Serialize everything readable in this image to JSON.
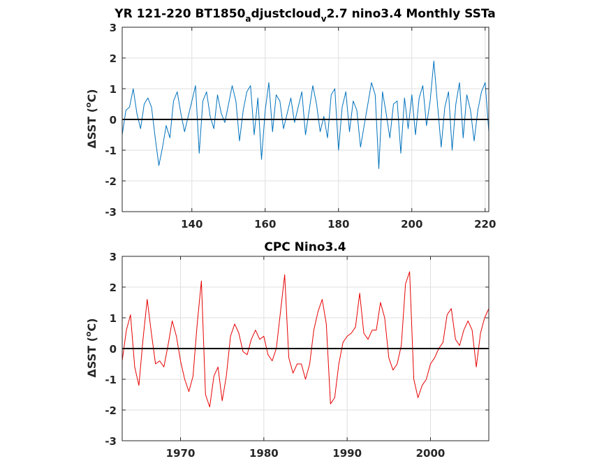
{
  "chart_data": [
    {
      "type": "line",
      "title": "YR 121-220 BT1850",
      "title_sub1": "a",
      "title_mid": "djustcloud",
      "title_sub2": "v",
      "title_end": "2.7 nino3.4 Monthly SSTa",
      "ylabel_delta": "Δ",
      "ylabel_pre": "SST (",
      "ylabel_deg": "o",
      "ylabel_post": "C)",
      "xlim": [
        121,
        221
      ],
      "ylim": [
        -3,
        3
      ],
      "xticks": [
        140,
        160,
        180,
        200,
        220
      ],
      "yticks": [
        -3,
        -2,
        -1,
        0,
        1,
        2,
        3
      ],
      "grid": true,
      "line_color": "#0072BD",
      "zero_line_color": "#000000",
      "series": [
        {
          "x": [
            121.0,
            122.0,
            123.0,
            124.0,
            125.0,
            126.0,
            127.0,
            128.0,
            129.0,
            130.0,
            131.0,
            132.0,
            133.0,
            134.0,
            135.0,
            136.0,
            137.0,
            138.0,
            139.0,
            140.0,
            141.0,
            142.0,
            143.0,
            144.0,
            145.0,
            146.0,
            147.0,
            148.0,
            149.0,
            150.0,
            151.0,
            152.0,
            153.0,
            154.0,
            155.0,
            156.0,
            157.0,
            158.0,
            159.0,
            160.0,
            161.0,
            162.0,
            163.0,
            164.0,
            165.0,
            166.0,
            167.0,
            168.0,
            169.0,
            170.0,
            171.0,
            172.0,
            173.0,
            174.0,
            175.0,
            176.0,
            177.0,
            178.0,
            179.0,
            180.0,
            181.0,
            182.0,
            183.0,
            184.0,
            185.0,
            186.0,
            187.0,
            188.0,
            189.0,
            190.0,
            191.0,
            192.0,
            193.0,
            194.0,
            195.0,
            196.0,
            197.0,
            198.0,
            199.0,
            200.0,
            201.0,
            202.0,
            203.0,
            204.0,
            205.0,
            206.0,
            207.0,
            208.0,
            209.0,
            210.0,
            211.0,
            212.0,
            213.0,
            214.0,
            215.0,
            216.0,
            217.0,
            218.0,
            219.0,
            220.0,
            221.0
          ],
          "y": [
            -0.5,
            0.3,
            0.4,
            1.0,
            0.2,
            -0.3,
            0.5,
            0.7,
            0.4,
            -0.6,
            -1.5,
            -0.9,
            -0.2,
            -0.6,
            0.6,
            0.9,
            0.2,
            -0.4,
            0.1,
            0.6,
            1.1,
            -1.1,
            0.6,
            0.9,
            0.1,
            -0.3,
            0.8,
            0.2,
            -0.1,
            0.5,
            1.1,
            0.6,
            -0.7,
            0.3,
            0.9,
            1.1,
            -0.5,
            0.7,
            -1.3,
            0.3,
            1.2,
            -0.4,
            0.8,
            0.6,
            -0.3,
            0.2,
            0.7,
            -0.1,
            0.4,
            0.9,
            -0.5,
            0.3,
            1.1,
            0.5,
            -0.4,
            0.1,
            -0.6,
            0.8,
            1.0,
            -1.0,
            0.4,
            0.9,
            -0.4,
            0.6,
            0.3,
            -0.9,
            -0.2,
            0.5,
            1.2,
            0.8,
            -1.6,
            0.9,
            0.2,
            -0.6,
            0.5,
            0.6,
            -1.1,
            0.7,
            -0.3,
            0.8,
            -0.5,
            0.7,
            1.1,
            -0.2,
            0.6,
            1.9,
            0.5,
            -0.9,
            0.4,
            0.9,
            -1.0,
            0.5,
            1.2,
            -0.6,
            0.8,
            0.3,
            -0.7,
            0.3,
            0.9,
            1.2,
            -0.4
          ]
        }
      ]
    },
    {
      "type": "line",
      "title": "CPC Nino3.4",
      "ylabel_delta": "Δ",
      "ylabel_pre": "SST (",
      "ylabel_deg": "o",
      "ylabel_post": "C)",
      "xlim": [
        1963,
        2007
      ],
      "ylim": [
        -3,
        3
      ],
      "xticks": [
        1970,
        1980,
        1990,
        2000
      ],
      "yticks": [
        -3,
        -2,
        -1,
        0,
        1,
        2,
        3
      ],
      "grid": true,
      "line_color": "#E60000",
      "zero_line_color": "#000000",
      "series": [
        {
          "x": [
            1963.0,
            1963.5,
            1964.0,
            1964.5,
            1965.0,
            1965.5,
            1966.0,
            1966.5,
            1967.0,
            1967.5,
            1968.0,
            1968.5,
            1969.0,
            1969.5,
            1970.0,
            1970.5,
            1971.0,
            1971.5,
            1972.0,
            1972.5,
            1973.0,
            1973.5,
            1974.0,
            1974.5,
            1975.0,
            1975.5,
            1976.0,
            1976.5,
            1977.0,
            1977.5,
            1978.0,
            1978.5,
            1979.0,
            1979.5,
            1980.0,
            1980.5,
            1981.0,
            1981.5,
            1982.0,
            1982.5,
            1983.0,
            1983.5,
            1984.0,
            1984.5,
            1985.0,
            1985.5,
            1986.0,
            1986.5,
            1987.0,
            1987.5,
            1988.0,
            1988.5,
            1989.0,
            1989.5,
            1990.0,
            1990.5,
            1991.0,
            1991.5,
            1992.0,
            1992.5,
            1993.0,
            1993.5,
            1994.0,
            1994.5,
            1995.0,
            1995.5,
            1996.0,
            1996.5,
            1997.0,
            1997.5,
            1998.0,
            1998.5,
            1999.0,
            1999.5,
            2000.0,
            2000.5,
            2001.0,
            2001.5,
            2002.0,
            2002.5,
            2003.0,
            2003.5,
            2004.0,
            2004.5,
            2005.0,
            2005.5,
            2006.0,
            2006.5,
            2007.0
          ],
          "y": [
            -0.4,
            0.6,
            1.1,
            -0.6,
            -1.2,
            0.3,
            1.6,
            0.5,
            -0.5,
            -0.4,
            -0.6,
            0.1,
            0.9,
            0.4,
            -0.4,
            -1.0,
            -1.4,
            -0.9,
            0.8,
            2.2,
            -1.5,
            -1.9,
            -0.9,
            -0.6,
            -1.7,
            -0.9,
            0.4,
            0.8,
            0.5,
            -0.1,
            -0.2,
            0.3,
            0.6,
            0.3,
            0.4,
            -0.2,
            -0.4,
            0.0,
            1.2,
            2.4,
            -0.3,
            -0.8,
            -0.5,
            -0.5,
            -1.0,
            -0.5,
            0.6,
            1.2,
            1.6,
            0.8,
            -1.8,
            -1.6,
            -0.5,
            0.2,
            0.4,
            0.5,
            0.7,
            1.8,
            0.5,
            0.3,
            0.6,
            0.6,
            1.5,
            1.0,
            -0.3,
            -0.7,
            -0.5,
            0.1,
            2.1,
            2.5,
            -1.0,
            -1.6,
            -1.2,
            -1.0,
            -0.5,
            -0.3,
            0.0,
            0.2,
            1.1,
            1.3,
            0.3,
            0.1,
            0.6,
            0.9,
            0.6,
            -0.6,
            0.5,
            1.0,
            1.3
          ]
        }
      ]
    }
  ]
}
